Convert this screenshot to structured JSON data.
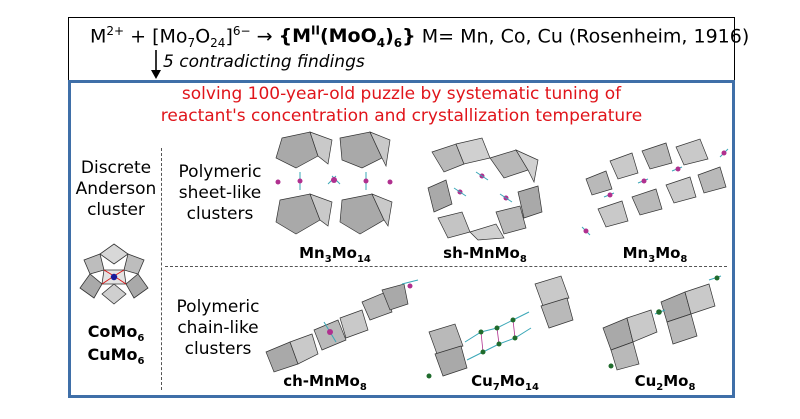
{
  "header": {
    "reaction_m": "M",
    "reaction_m_charge": "2+",
    "reaction_plus": " + [Mo",
    "reaction_mo_sub": "7",
    "reaction_o": "O",
    "reaction_o_sub": "24",
    "reaction_charge": "]",
    "reaction_charge_sup": "6−",
    "reaction_arrow": " → ",
    "product_open": "{M",
    "product_sup": "II",
    "product_mid": "(MoO",
    "product_sub4": "4",
    "product_close": ")",
    "product_sub6": "6",
    "product_brace": "}",
    "metals_text": " M= Mn, Co, Cu (Rosenheim, 1916)",
    "findings": "5 contradicting findings"
  },
  "headline": {
    "line1": "solving 100-year-old puzzle by systematic tuning of",
    "line2": "reactant's concentration and crystallization temperature"
  },
  "discrete": {
    "label_line1": "Discrete",
    "label_line2": "Anderson",
    "label_line3": "cluster",
    "name1_base": "CoMo",
    "name1_sub": "6",
    "name2_base": "CuMo",
    "name2_sub": "6"
  },
  "sheet": {
    "label_line1": "Polymeric",
    "label_line2": "sheet-like",
    "label_line3": "clusters",
    "items": [
      {
        "base1": "Mn",
        "sub1": "3",
        "base2": "Mo",
        "sub2": "14"
      },
      {
        "base1": "sh-MnMo",
        "sub1": "8",
        "base2": "",
        "sub2": ""
      },
      {
        "base1": "Mn",
        "sub1": "3",
        "base2": "Mo",
        "sub2": "8"
      }
    ]
  },
  "chain": {
    "label_line1": "Polymeric",
    "label_line2": "chain-like",
    "label_line3": "clusters",
    "items": [
      {
        "base1": "ch-MnMo",
        "sub1": "8",
        "base2": "",
        "sub2": ""
      },
      {
        "base1": "Cu",
        "sub1": "7",
        "base2": "Mo",
        "sub2": "14"
      },
      {
        "base1": "Cu",
        "sub1": "2",
        "base2": "Mo",
        "sub2": "8"
      }
    ]
  },
  "colors": {
    "headline": "#e0141a",
    "frame": "#3f6fa8",
    "poly_light": "#c9c9c9",
    "poly_dark": "#7d7d7d",
    "metal_mn": "#b0308f",
    "metal_cu": "#1f6b2c",
    "metal_co": "#1a1a9a",
    "ligand": "#3aa7b7"
  }
}
